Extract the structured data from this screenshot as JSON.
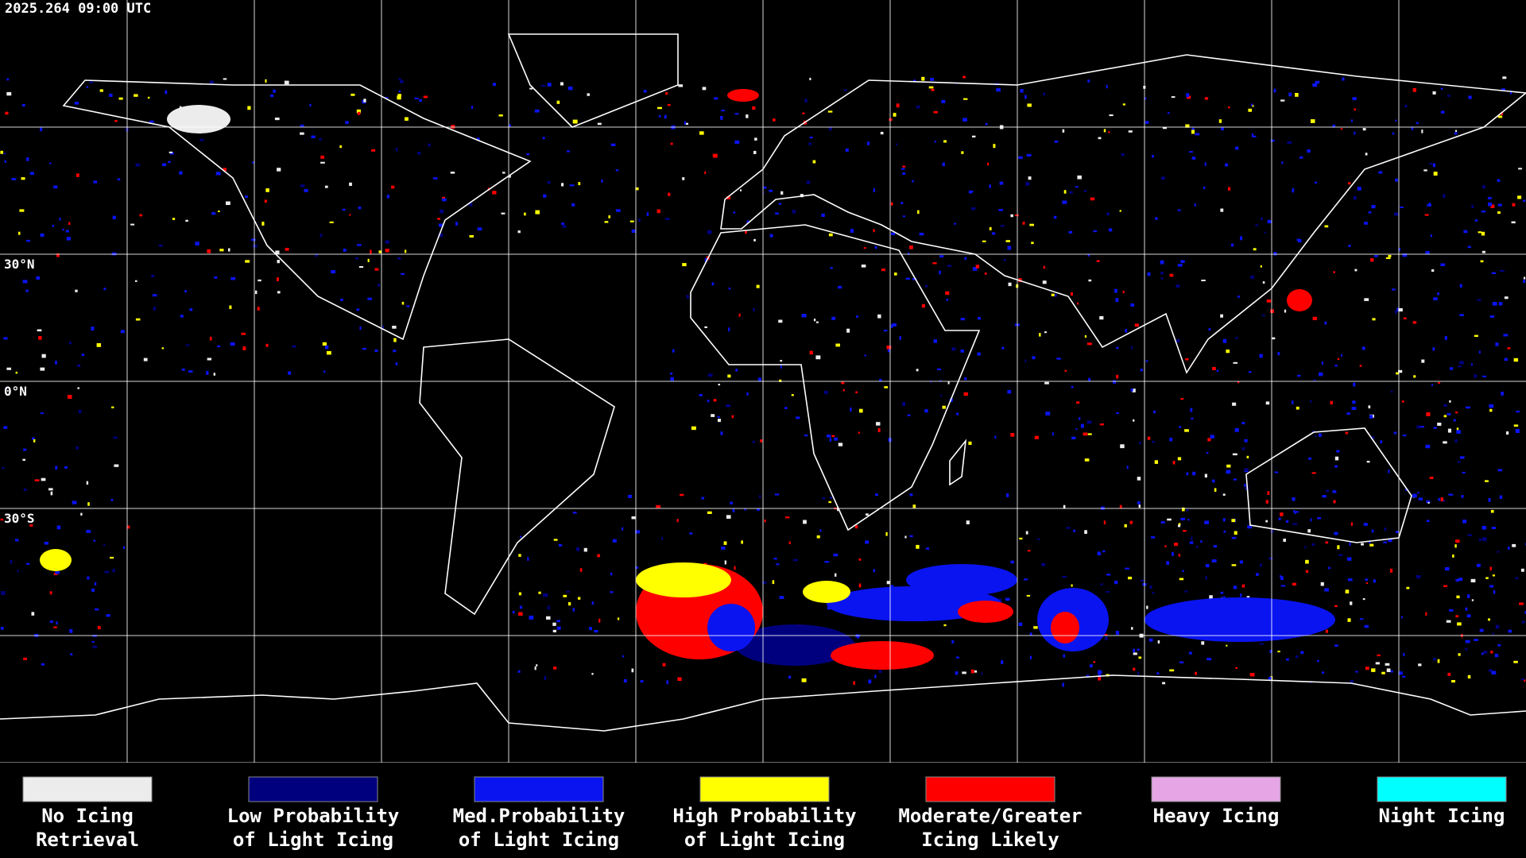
{
  "header": {
    "title": "2025.264 09:00 UTC"
  },
  "map": {
    "latitude_labels": [
      "30°N",
      "0°N",
      "30°S"
    ]
  },
  "legend": {
    "items": [
      {
        "lines": [
          "No Icing",
          "Retrieval"
        ],
        "color": "#ececec"
      },
      {
        "lines": [
          "Low Probability",
          "of Light Icing"
        ],
        "color": "#00007f"
      },
      {
        "lines": [
          "Med.Probability",
          "of Light Icing"
        ],
        "color": "#0a14f0"
      },
      {
        "lines": [
          "High Probability",
          "of Light Icing"
        ],
        "color": "#ffff00"
      },
      {
        "lines": [
          "Moderate/Greater",
          "Icing Likely"
        ],
        "color": "#ff0000"
      },
      {
        "lines": [
          "Heavy Icing"
        ],
        "color": "#e6a6e6"
      },
      {
        "lines": [
          "Night Icing"
        ],
        "color": "#00ffff"
      }
    ]
  }
}
